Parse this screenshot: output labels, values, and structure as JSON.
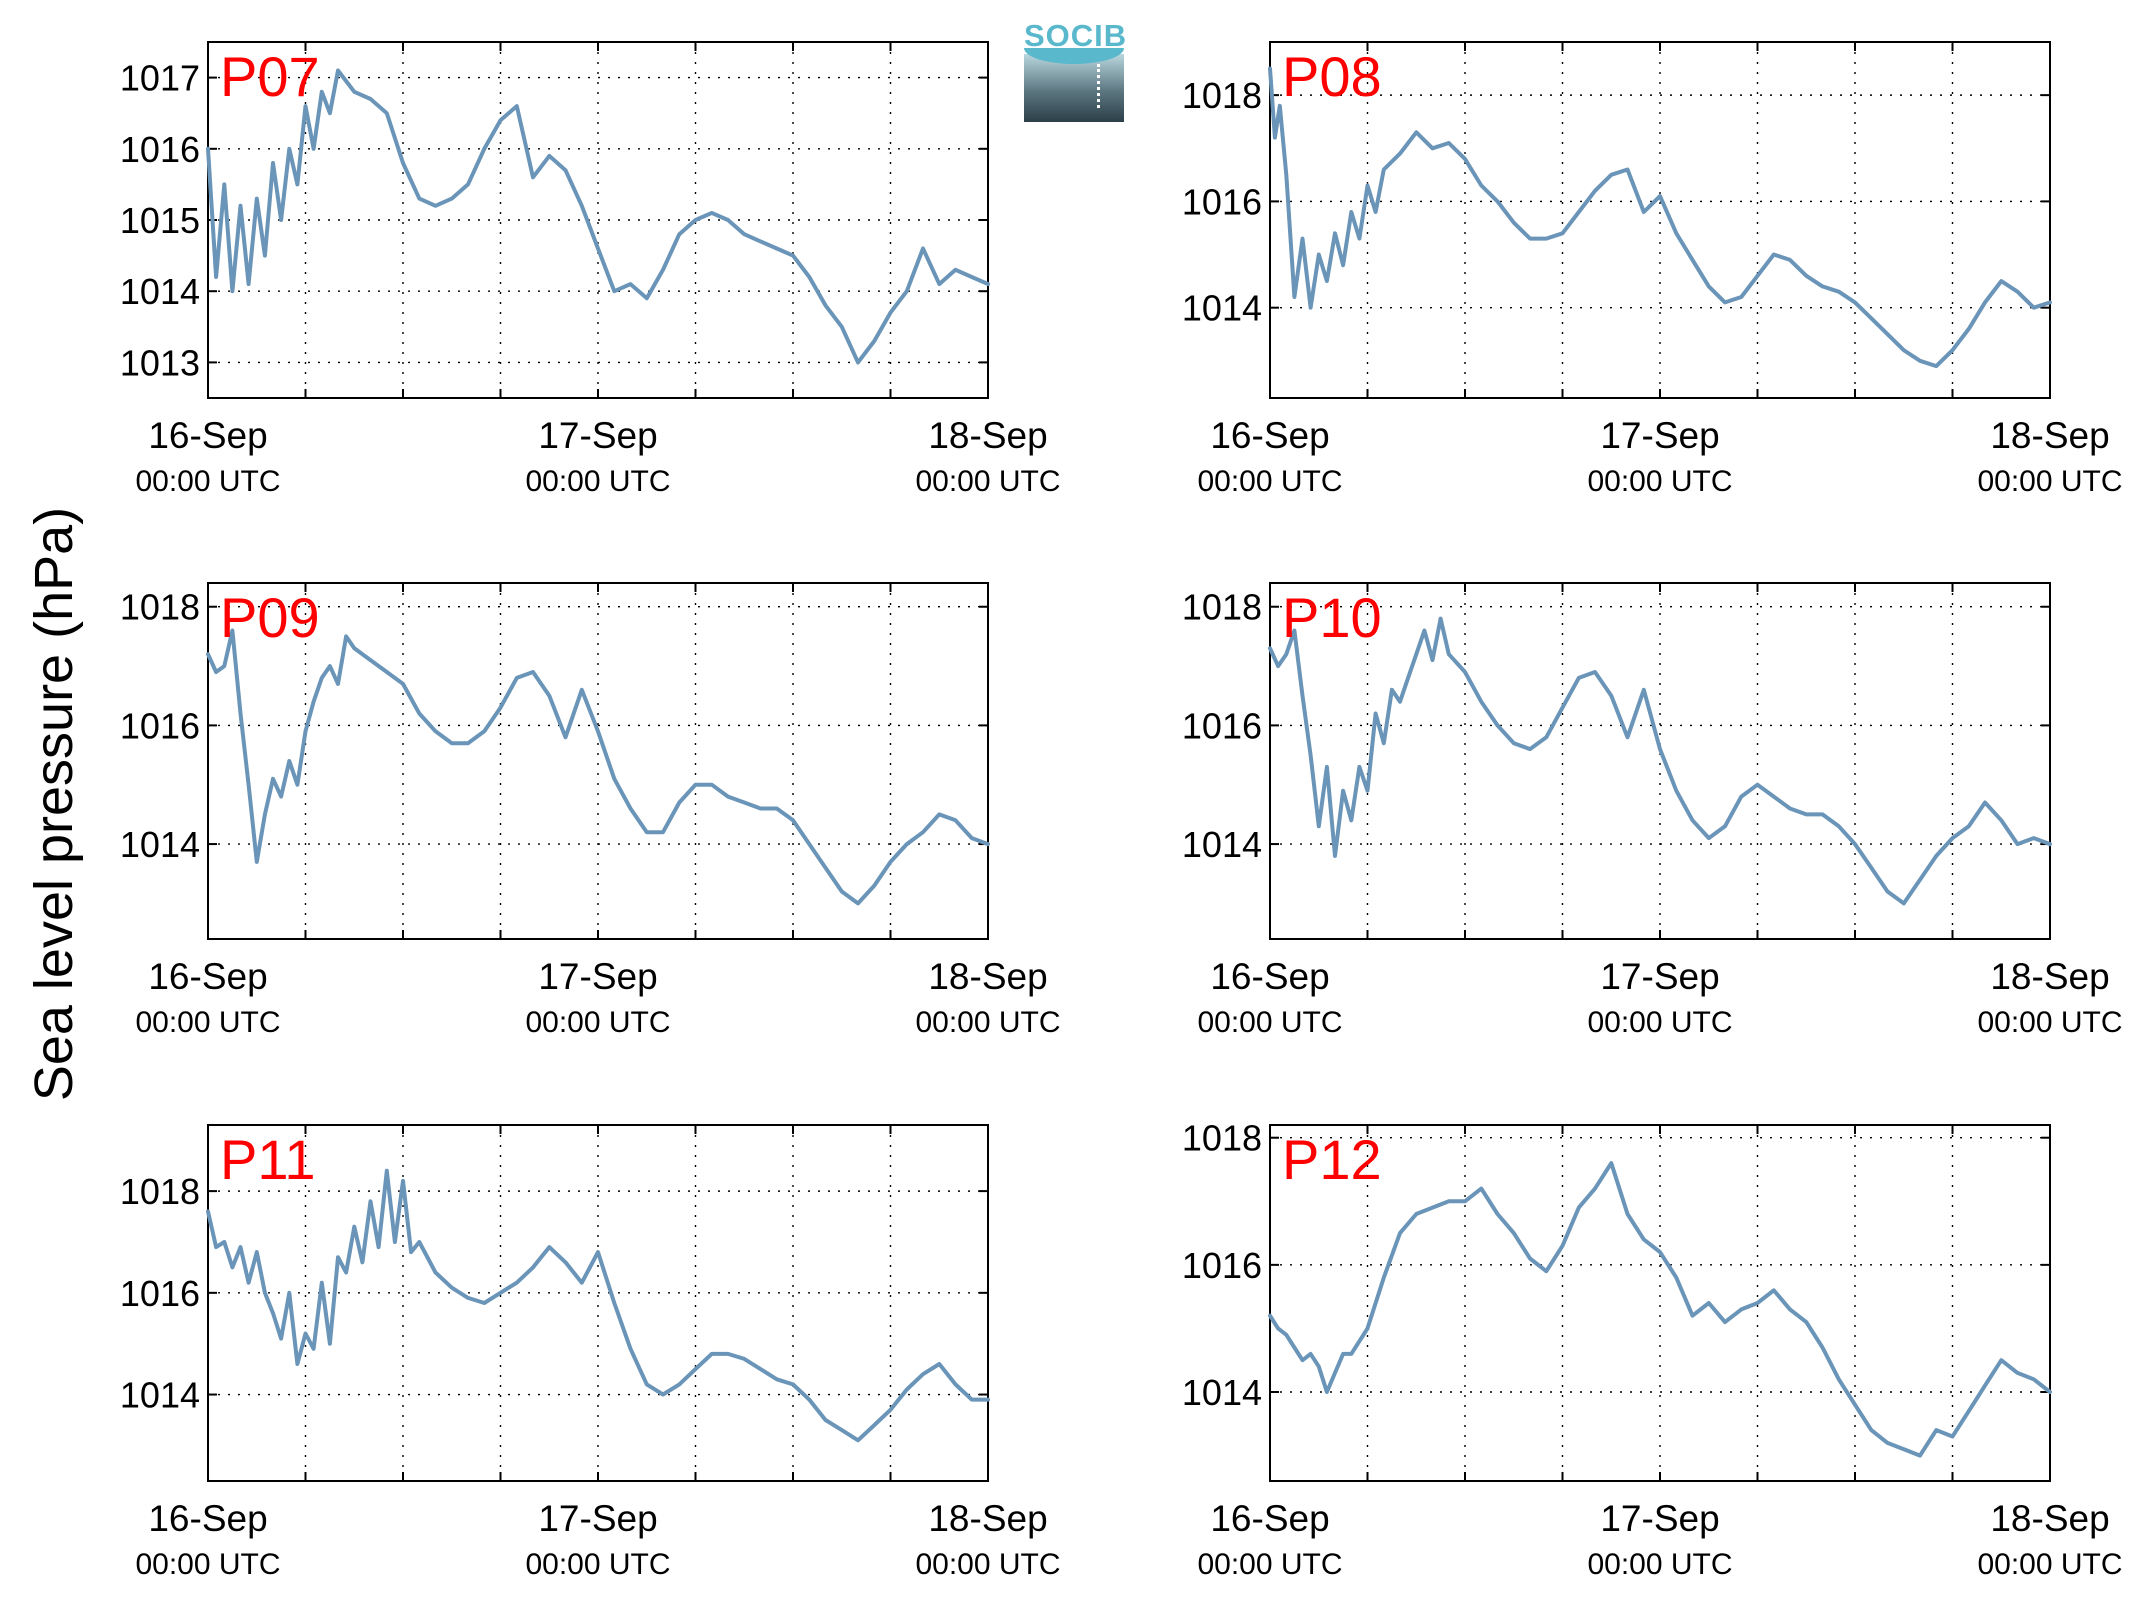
{
  "ylabel": "Sea level pressure (hPa)",
  "logo": {
    "text": "SOCIB"
  },
  "chart_data": [
    {
      "type": "line",
      "label": "P07",
      "x_tick_labels": [
        [
          "16-Sep",
          "00:00 UTC"
        ],
        [
          "17-Sep",
          "00:00 UTC"
        ],
        [
          "18-Sep",
          "00:00 UTC"
        ]
      ],
      "xlim": [
        0,
        48
      ],
      "ylim": [
        1012.5,
        1017.5
      ],
      "yticks": [
        1013,
        1014,
        1015,
        1016,
        1017
      ],
      "x": [
        0,
        0.5,
        1,
        1.5,
        2,
        2.5,
        3,
        3.5,
        4,
        4.5,
        5,
        5.5,
        6,
        6.5,
        7,
        7.5,
        8,
        9,
        10,
        11,
        12,
        13,
        14,
        15,
        16,
        17,
        18,
        19,
        20,
        21,
        22,
        23,
        24,
        25,
        26,
        27,
        28,
        29,
        30,
        31,
        32,
        33,
        34,
        35,
        36,
        37,
        38,
        39,
        40,
        41,
        42,
        43,
        44,
        45,
        46,
        47,
        48
      ],
      "y": [
        1016.0,
        1014.2,
        1015.5,
        1014.0,
        1015.2,
        1014.1,
        1015.3,
        1014.5,
        1015.8,
        1015.0,
        1016.0,
        1015.5,
        1016.6,
        1016.0,
        1016.8,
        1016.5,
        1017.1,
        1016.8,
        1016.7,
        1016.5,
        1015.8,
        1015.3,
        1015.2,
        1015.3,
        1015.5,
        1016.0,
        1016.4,
        1016.6,
        1015.6,
        1015.9,
        1015.7,
        1015.2,
        1014.6,
        1014.0,
        1014.1,
        1013.9,
        1014.3,
        1014.8,
        1015.0,
        1015.1,
        1015.0,
        1014.8,
        1014.7,
        1014.6,
        1014.5,
        1014.2,
        1013.8,
        1013.5,
        1013.0,
        1013.3,
        1013.7,
        1014.0,
        1014.6,
        1014.1,
        1014.3,
        1014.2,
        1014.1
      ]
    },
    {
      "type": "line",
      "label": "P08",
      "x_tick_labels": [
        [
          "16-Sep",
          "00:00 UTC"
        ],
        [
          "17-Sep",
          "00:00 UTC"
        ],
        [
          "18-Sep",
          "00:00 UTC"
        ]
      ],
      "xlim": [
        0,
        48
      ],
      "ylim": [
        1012.3,
        1019
      ],
      "yticks": [
        1014,
        1016,
        1018
      ],
      "x": [
        0,
        0.3,
        0.6,
        1,
        1.5,
        2,
        2.5,
        3,
        3.5,
        4,
        4.5,
        5,
        5.5,
        6,
        6.5,
        7,
        8,
        9,
        10,
        11,
        12,
        13,
        14,
        15,
        16,
        17,
        18,
        19,
        20,
        21,
        22,
        23,
        24,
        25,
        26,
        27,
        28,
        29,
        30,
        31,
        32,
        33,
        34,
        35,
        36,
        37,
        38,
        39,
        40,
        41,
        42,
        43,
        44,
        45,
        46,
        47,
        48
      ],
      "y": [
        1018.5,
        1017.2,
        1017.8,
        1016.5,
        1014.2,
        1015.3,
        1014.0,
        1015.0,
        1014.5,
        1015.4,
        1014.8,
        1015.8,
        1015.3,
        1016.3,
        1015.8,
        1016.6,
        1016.9,
        1017.3,
        1017.0,
        1017.1,
        1016.8,
        1016.3,
        1016.0,
        1015.6,
        1015.3,
        1015.3,
        1015.4,
        1015.8,
        1016.2,
        1016.5,
        1016.6,
        1015.8,
        1016.1,
        1015.4,
        1014.9,
        1014.4,
        1014.1,
        1014.2,
        1014.6,
        1015.0,
        1014.9,
        1014.6,
        1014.4,
        1014.3,
        1014.1,
        1013.8,
        1013.5,
        1013.2,
        1013.0,
        1012.9,
        1013.2,
        1013.6,
        1014.1,
        1014.5,
        1014.3,
        1014.0,
        1014.1
      ]
    },
    {
      "type": "line",
      "label": "P09",
      "x_tick_labels": [
        [
          "16-Sep",
          "00:00 UTC"
        ],
        [
          "17-Sep",
          "00:00 UTC"
        ],
        [
          "18-Sep",
          "00:00 UTC"
        ]
      ],
      "xlim": [
        0,
        48
      ],
      "ylim": [
        1012.4,
        1018.4
      ],
      "yticks": [
        1014,
        1016,
        1018
      ],
      "x": [
        0,
        0.5,
        1,
        1.5,
        2,
        2.5,
        3,
        3.5,
        4,
        4.5,
        5,
        5.5,
        6,
        6.5,
        7,
        7.5,
        8,
        8.5,
        9,
        10,
        11,
        12,
        13,
        14,
        15,
        16,
        17,
        18,
        19,
        20,
        21,
        22,
        23,
        24,
        25,
        26,
        27,
        28,
        29,
        30,
        31,
        32,
        33,
        34,
        35,
        36,
        37,
        38,
        39,
        40,
        41,
        42,
        43,
        44,
        45,
        46,
        47,
        48
      ],
      "y": [
        1017.2,
        1016.9,
        1017.0,
        1017.6,
        1016.2,
        1015.0,
        1013.7,
        1014.5,
        1015.1,
        1014.8,
        1015.4,
        1015.0,
        1015.9,
        1016.4,
        1016.8,
        1017.0,
        1016.7,
        1017.5,
        1017.3,
        1017.1,
        1016.9,
        1016.7,
        1016.2,
        1015.9,
        1015.7,
        1015.7,
        1015.9,
        1016.3,
        1016.8,
        1016.9,
        1016.5,
        1015.8,
        1016.6,
        1015.9,
        1015.1,
        1014.6,
        1014.2,
        1014.2,
        1014.7,
        1015.0,
        1015.0,
        1014.8,
        1014.7,
        1014.6,
        1014.6,
        1014.4,
        1014.0,
        1013.6,
        1013.2,
        1013.0,
        1013.3,
        1013.7,
        1014.0,
        1014.2,
        1014.5,
        1014.4,
        1014.1,
        1014.0
      ]
    },
    {
      "type": "line",
      "label": "P10",
      "x_tick_labels": [
        [
          "16-Sep",
          "00:00 UTC"
        ],
        [
          "17-Sep",
          "00:00 UTC"
        ],
        [
          "18-Sep",
          "00:00 UTC"
        ]
      ],
      "xlim": [
        0,
        48
      ],
      "ylim": [
        1012.4,
        1018.4
      ],
      "yticks": [
        1014,
        1016,
        1018
      ],
      "x": [
        0,
        0.5,
        1,
        1.5,
        2,
        2.5,
        3,
        3.5,
        4,
        4.5,
        5,
        5.5,
        6,
        6.5,
        7,
        7.5,
        8,
        8.5,
        9,
        9.5,
        10,
        10.5,
        11,
        12,
        13,
        14,
        15,
        16,
        17,
        18,
        19,
        20,
        21,
        22,
        23,
        24,
        25,
        26,
        27,
        28,
        29,
        30,
        31,
        32,
        33,
        34,
        35,
        36,
        37,
        38,
        39,
        40,
        41,
        42,
        43,
        44,
        45,
        46,
        47,
        48
      ],
      "y": [
        1017.3,
        1017.0,
        1017.2,
        1017.6,
        1016.5,
        1015.5,
        1014.3,
        1015.3,
        1013.8,
        1014.9,
        1014.4,
        1015.3,
        1014.9,
        1016.2,
        1015.7,
        1016.6,
        1016.4,
        1016.8,
        1017.2,
        1017.6,
        1017.1,
        1017.8,
        1017.2,
        1016.9,
        1016.4,
        1016.0,
        1015.7,
        1015.6,
        1015.8,
        1016.3,
        1016.8,
        1016.9,
        1016.5,
        1015.8,
        1016.6,
        1015.6,
        1014.9,
        1014.4,
        1014.1,
        1014.3,
        1014.8,
        1015.0,
        1014.8,
        1014.6,
        1014.5,
        1014.5,
        1014.3,
        1014.0,
        1013.6,
        1013.2,
        1013.0,
        1013.4,
        1013.8,
        1014.1,
        1014.3,
        1014.7,
        1014.4,
        1014.0,
        1014.1,
        1014.0
      ]
    },
    {
      "type": "line",
      "label": "P11",
      "x_tick_labels": [
        [
          "16-Sep",
          "00:00 UTC"
        ],
        [
          "17-Sep",
          "00:00 UTC"
        ],
        [
          "18-Sep",
          "00:00 UTC"
        ]
      ],
      "xlim": [
        0,
        48
      ],
      "ylim": [
        1012.3,
        1019.3
      ],
      "yticks": [
        1014,
        1016,
        1018
      ],
      "x": [
        0,
        0.5,
        1,
        1.5,
        2,
        2.5,
        3,
        3.5,
        4,
        4.5,
        5,
        5.5,
        6,
        6.5,
        7,
        7.5,
        8,
        8.5,
        9,
        9.5,
        10,
        10.5,
        11,
        11.5,
        12,
        12.5,
        13,
        14,
        15,
        16,
        17,
        18,
        19,
        20,
        21,
        22,
        23,
        24,
        25,
        26,
        27,
        28,
        29,
        30,
        31,
        32,
        33,
        34,
        35,
        36,
        37,
        38,
        39,
        40,
        41,
        42,
        43,
        44,
        45,
        46,
        47,
        48
      ],
      "y": [
        1017.6,
        1016.9,
        1017.0,
        1016.5,
        1016.9,
        1016.2,
        1016.8,
        1016.0,
        1015.6,
        1015.1,
        1016.0,
        1014.6,
        1015.2,
        1014.9,
        1016.2,
        1015.0,
        1016.7,
        1016.4,
        1017.3,
        1016.6,
        1017.8,
        1016.9,
        1018.4,
        1017.0,
        1018.2,
        1016.8,
        1017.0,
        1016.4,
        1016.1,
        1015.9,
        1015.8,
        1016.0,
        1016.2,
        1016.5,
        1016.9,
        1016.6,
        1016.2,
        1016.8,
        1015.8,
        1014.9,
        1014.2,
        1014.0,
        1014.2,
        1014.5,
        1014.8,
        1014.8,
        1014.7,
        1014.5,
        1014.3,
        1014.2,
        1013.9,
        1013.5,
        1013.3,
        1013.1,
        1013.4,
        1013.7,
        1014.1,
        1014.4,
        1014.6,
        1014.2,
        1013.9,
        1013.9
      ]
    },
    {
      "type": "line",
      "label": "P12",
      "x_tick_labels": [
        [
          "16-Sep",
          "00:00 UTC"
        ],
        [
          "17-Sep",
          "00:00 UTC"
        ],
        [
          "18-Sep",
          "00:00 UTC"
        ]
      ],
      "xlim": [
        0,
        48
      ],
      "ylim": [
        1012.6,
        1018.2
      ],
      "yticks": [
        1014,
        1016,
        1018
      ],
      "x": [
        0,
        0.5,
        1,
        1.5,
        2,
        2.5,
        3,
        3.5,
        4,
        4.5,
        5,
        6,
        7,
        8,
        9,
        10,
        11,
        12,
        13,
        14,
        15,
        16,
        17,
        18,
        19,
        20,
        21,
        22,
        23,
        24,
        25,
        26,
        27,
        28,
        29,
        30,
        31,
        32,
        33,
        34,
        35,
        36,
        37,
        38,
        39,
        40,
        41,
        42,
        43,
        44,
        45,
        46,
        47,
        48
      ],
      "y": [
        1015.2,
        1015.0,
        1014.9,
        1014.7,
        1014.5,
        1014.6,
        1014.4,
        1014.0,
        1014.3,
        1014.6,
        1014.6,
        1015.0,
        1015.8,
        1016.5,
        1016.8,
        1016.9,
        1017.0,
        1017.0,
        1017.2,
        1016.8,
        1016.5,
        1016.1,
        1015.9,
        1016.3,
        1016.9,
        1017.2,
        1017.6,
        1016.8,
        1016.4,
        1016.2,
        1015.8,
        1015.2,
        1015.4,
        1015.1,
        1015.3,
        1015.4,
        1015.6,
        1015.3,
        1015.1,
        1014.7,
        1014.2,
        1013.8,
        1013.4,
        1013.2,
        1013.1,
        1013.0,
        1013.4,
        1013.3,
        1013.7,
        1014.1,
        1014.5,
        1014.3,
        1014.2,
        1014.0
      ]
    }
  ],
  "style": {
    "line_color": "#6a95b8",
    "label_color": "#ff0000",
    "grid": true,
    "grid_style": "dotted"
  }
}
